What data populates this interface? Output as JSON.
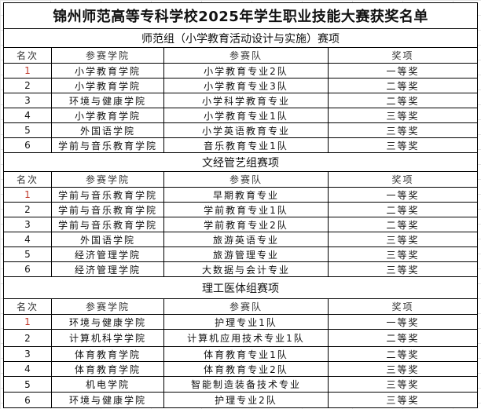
{
  "title": "锦州师范高等专科学校2025年学生职业技能大赛获奖名单",
  "columns": [
    "名次",
    "参赛学院",
    "参赛队",
    "奖项"
  ],
  "highlight_color": "#c0392b",
  "sections": [
    {
      "name": "师范组（小学教育活动设计与实施）赛项",
      "rows": [
        [
          "1",
          "小学教育学院",
          "小学教育专业2队",
          "一等奖"
        ],
        [
          "2",
          "小学教育学院",
          "小学教育专业3队",
          "二等奖"
        ],
        [
          "3",
          "环境与健康学院",
          "小学科学教育专业",
          "二等奖"
        ],
        [
          "4",
          "小学教育学院",
          "小学教育专业1队",
          "三等奖"
        ],
        [
          "5",
          "外国语学院",
          "小学英语教育专业",
          "三等奖"
        ],
        [
          "6",
          "学前与音乐教育学院",
          "音乐教育专业1队",
          "三等奖"
        ]
      ]
    },
    {
      "name": "文经管艺组赛项",
      "rows": [
        [
          "1",
          "学前与音乐教育学院",
          "早期教育专业",
          "一等奖"
        ],
        [
          "2",
          "学前与音乐教育学院",
          "学前教育专业1队",
          "二等奖"
        ],
        [
          "3",
          "学前与音乐教育学院",
          "学前教育专业2队",
          "二等奖"
        ],
        [
          "4",
          "外国语学院",
          "旅游英语专业",
          "三等奖"
        ],
        [
          "5",
          "经济管理学院",
          "旅游管理专业",
          "三等奖"
        ],
        [
          "6",
          "经济管理学院",
          "大数据与会计专业",
          "三等奖"
        ]
      ]
    },
    {
      "name": "理工医体组赛项",
      "rows": [
        [
          "1",
          "环境与健康学院",
          "护理专业1队",
          "一等奖"
        ],
        [
          "2",
          "计算机科学学院",
          "计算机应用技术专业1队",
          "二等奖"
        ],
        [
          "3",
          "体育教育学院",
          "体育教育专业1队",
          "二等奖"
        ],
        [
          "4",
          "体育教育学院",
          "体育教育专业2队",
          "三等奖"
        ],
        [
          "5",
          "机电学院",
          "智能制造装备技术专业",
          "三等奖"
        ],
        [
          "6",
          "环境与健康学院",
          "护理专业2队",
          "三等奖"
        ]
      ]
    }
  ]
}
